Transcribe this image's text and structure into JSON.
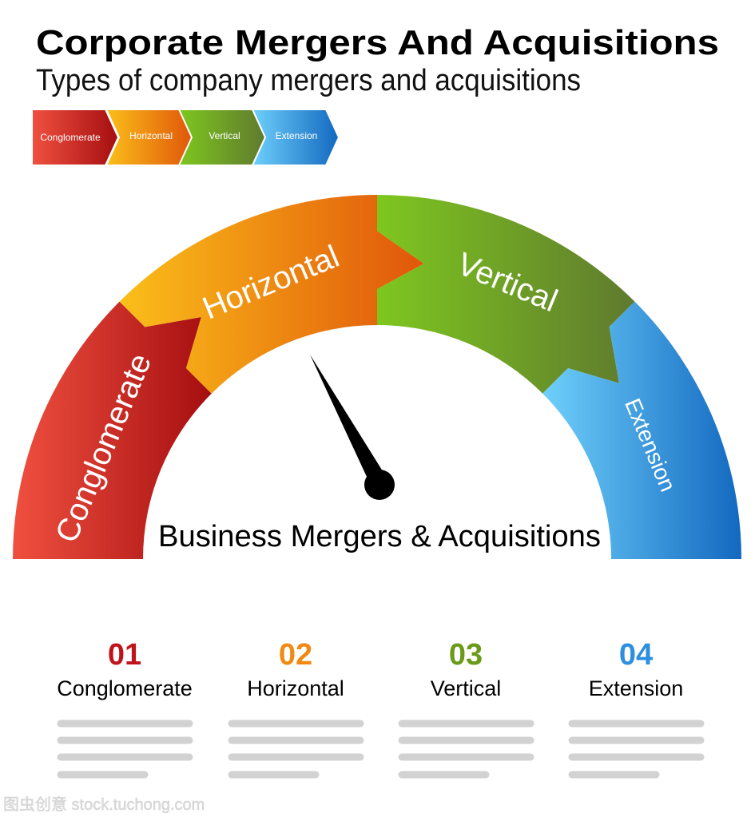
{
  "header": {
    "title": "Corporate Mergers And Acquisitions",
    "subtitle": "Types of company mergers and acquisitions"
  },
  "chevrons": [
    {
      "label": "Conglomerate",
      "colors": [
        "#f0503f",
        "#a50e10"
      ]
    },
    {
      "label": "Horizontal",
      "colors": [
        "#fbbf1a",
        "#e0560a"
      ]
    },
    {
      "label": "Vertical",
      "colors": [
        "#7ec71f",
        "#5f7a2e"
      ]
    },
    {
      "label": "Extension",
      "colors": [
        "#6fd0fb",
        "#1368c0"
      ]
    }
  ],
  "gauge": {
    "segments": [
      {
        "label": "Conglomerate",
        "colors": [
          "#f0503f",
          "#a50e10"
        ]
      },
      {
        "label": "Horizontal",
        "colors": [
          "#fbbf1a",
          "#e0560a"
        ]
      },
      {
        "label": "Vertical",
        "colors": [
          "#7ec71f",
          "#5f7a2e"
        ]
      },
      {
        "label": "Extension",
        "colors": [
          "#6fd0fb",
          "#1368c0"
        ]
      }
    ],
    "center_label": "Business Mergers & Acquisitions"
  },
  "items": [
    {
      "number": "01",
      "label": "Conglomerate",
      "color": "#c0141b"
    },
    {
      "number": "02",
      "label": "Horizontal",
      "color": "#f08a12"
    },
    {
      "number": "03",
      "label": "Vertical",
      "color": "#6a9a1a"
    },
    {
      "number": "04",
      "label": "Extension",
      "color": "#2d8fe0"
    }
  ],
  "watermark": "图虫创意 stock.tuchong.com"
}
